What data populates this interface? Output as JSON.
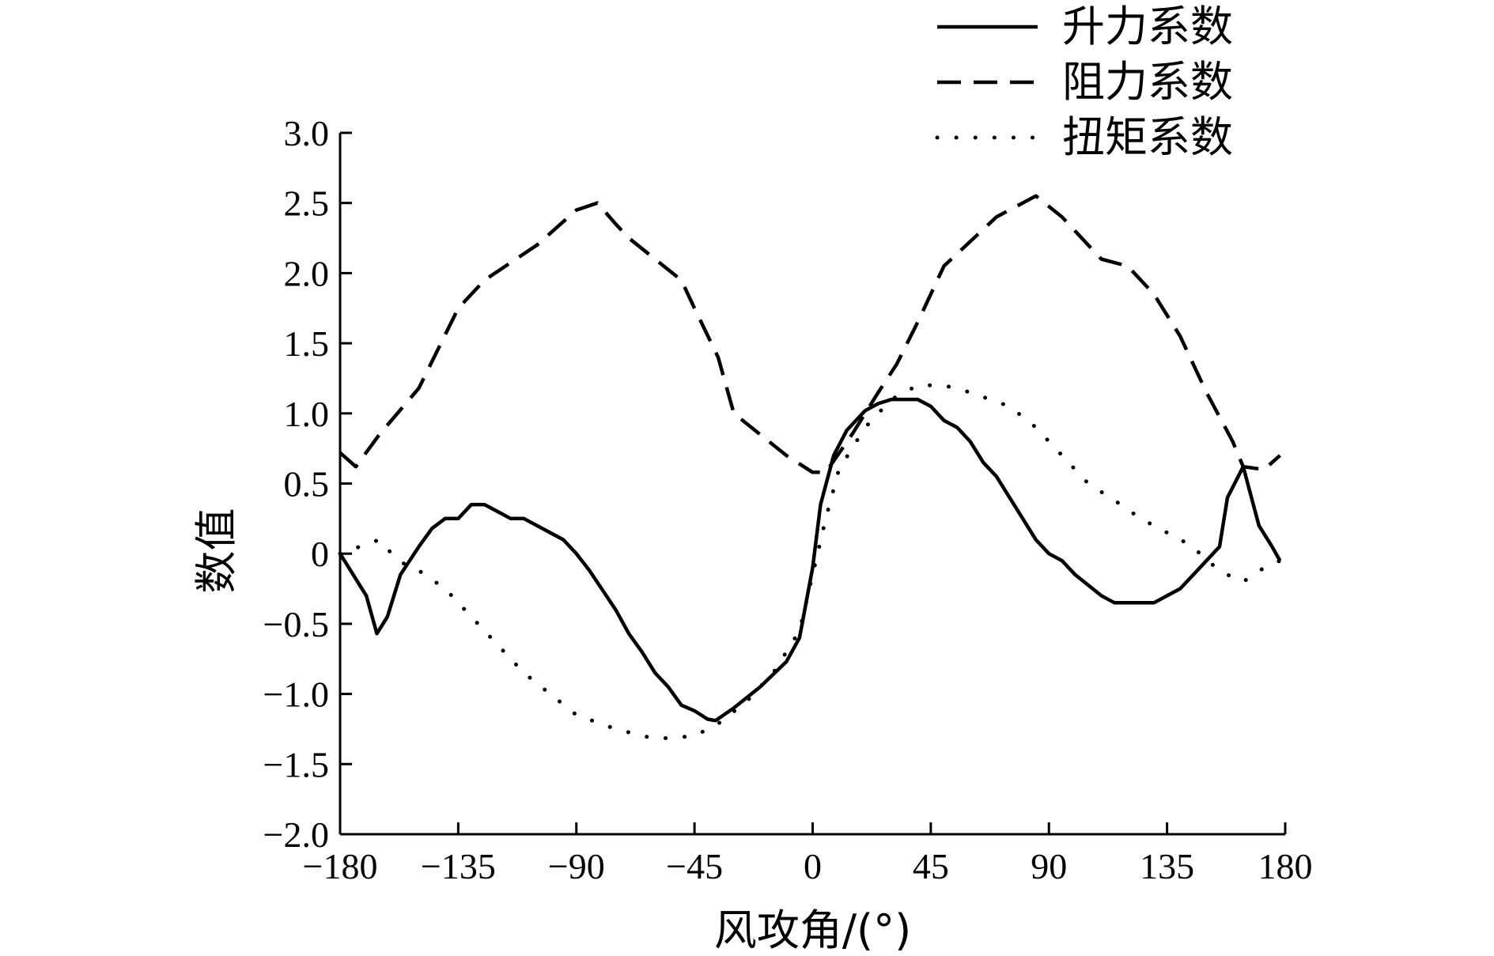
{
  "chart_data": {
    "type": "line",
    "title": "",
    "xlabel": "风攻角/(°)",
    "ylabel": "数值",
    "xlim": [
      -180,
      180
    ],
    "ylim": [
      -2.0,
      3.0
    ],
    "x_ticks": [
      -180,
      -135,
      -90,
      -45,
      0,
      45,
      90,
      135,
      180
    ],
    "x_tick_labels": [
      "−180",
      "−135",
      "−90",
      "−45",
      "0",
      "45",
      "90",
      "135",
      "180"
    ],
    "y_ticks": [
      3.0,
      2.5,
      2.0,
      1.5,
      1.0,
      0.5,
      0,
      -0.5,
      -1.0,
      -1.5,
      -2.0
    ],
    "y_tick_labels": [
      "3.0",
      "2.5",
      "2.0",
      "1.5",
      "1.0",
      "0.5",
      "0",
      "−0.5",
      "−1.0",
      "−1.5",
      "−2.0"
    ],
    "grid": false,
    "legend_position": "top-right",
    "series": [
      {
        "name": "升力系数",
        "style": "solid",
        "points": [
          [
            -180,
            0.0
          ],
          [
            -170,
            -0.3
          ],
          [
            -166,
            -0.57
          ],
          [
            -162,
            -0.45
          ],
          [
            -157,
            -0.15
          ],
          [
            -150,
            0.05
          ],
          [
            -145,
            0.18
          ],
          [
            -140,
            0.25
          ],
          [
            -135,
            0.25
          ],
          [
            -130,
            0.35
          ],
          [
            -125,
            0.35
          ],
          [
            -115,
            0.25
          ],
          [
            -110,
            0.25
          ],
          [
            -100,
            0.15
          ],
          [
            -95,
            0.1
          ],
          [
            -90,
            0.0
          ],
          [
            -85,
            -0.12
          ],
          [
            -75,
            -0.4
          ],
          [
            -70,
            -0.57
          ],
          [
            -65,
            -0.7
          ],
          [
            -60,
            -0.85
          ],
          [
            -55,
            -0.95
          ],
          [
            -50,
            -1.08
          ],
          [
            -45,
            -1.12
          ],
          [
            -40,
            -1.18
          ],
          [
            -37,
            -1.19
          ],
          [
            -30,
            -1.1
          ],
          [
            -20,
            -0.95
          ],
          [
            -10,
            -0.77
          ],
          [
            -5,
            -0.6
          ],
          [
            0,
            -0.1
          ],
          [
            3,
            0.35
          ],
          [
            8,
            0.7
          ],
          [
            13,
            0.88
          ],
          [
            20,
            1.02
          ],
          [
            25,
            1.07
          ],
          [
            30,
            1.1
          ],
          [
            40,
            1.1
          ],
          [
            45,
            1.05
          ],
          [
            50,
            0.95
          ],
          [
            55,
            0.9
          ],
          [
            60,
            0.8
          ],
          [
            65,
            0.65
          ],
          [
            70,
            0.55
          ],
          [
            80,
            0.25
          ],
          [
            85,
            0.1
          ],
          [
            90,
            0.0
          ],
          [
            95,
            -0.05
          ],
          [
            100,
            -0.15
          ],
          [
            110,
            -0.3
          ],
          [
            115,
            -0.35
          ],
          [
            130,
            -0.35
          ],
          [
            135,
            -0.3
          ],
          [
            140,
            -0.25
          ],
          [
            145,
            -0.15
          ],
          [
            150,
            -0.05
          ],
          [
            155,
            0.05
          ],
          [
            158,
            0.4
          ],
          [
            164,
            0.62
          ],
          [
            170,
            0.2
          ],
          [
            175,
            0.05
          ],
          [
            178,
            -0.05
          ]
        ]
      },
      {
        "name": "阻力系数",
        "style": "dashed",
        "points": [
          [
            -180,
            0.72
          ],
          [
            -174,
            0.62
          ],
          [
            -165,
            0.85
          ],
          [
            -150,
            1.18
          ],
          [
            -135,
            1.75
          ],
          [
            -125,
            1.95
          ],
          [
            -105,
            2.2
          ],
          [
            -90,
            2.45
          ],
          [
            -82,
            2.5
          ],
          [
            -75,
            2.35
          ],
          [
            -70,
            2.25
          ],
          [
            -60,
            2.1
          ],
          [
            -50,
            1.95
          ],
          [
            -45,
            1.75
          ],
          [
            -36,
            1.4
          ],
          [
            -30,
            1.0
          ],
          [
            -20,
            0.85
          ],
          [
            -10,
            0.7
          ],
          [
            0,
            0.58
          ],
          [
            5,
            0.58
          ],
          [
            15,
            0.85
          ],
          [
            25,
            1.15
          ],
          [
            32,
            1.35
          ],
          [
            40,
            1.65
          ],
          [
            50,
            2.05
          ],
          [
            70,
            2.4
          ],
          [
            85,
            2.55
          ],
          [
            95,
            2.4
          ],
          [
            100,
            2.3
          ],
          [
            110,
            2.1
          ],
          [
            120,
            2.05
          ],
          [
            130,
            1.85
          ],
          [
            140,
            1.55
          ],
          [
            150,
            1.15
          ],
          [
            160,
            0.8
          ],
          [
            164,
            0.62
          ],
          [
            172,
            0.6
          ],
          [
            178,
            0.7
          ]
        ]
      },
      {
        "name": "扭矩系数",
        "style": "dotted",
        "points": [
          [
            -180,
            0.0
          ],
          [
            -165,
            0.1
          ],
          [
            -158,
            -0.05
          ],
          [
            -150,
            -0.12
          ],
          [
            -140,
            -0.25
          ],
          [
            -130,
            -0.45
          ],
          [
            -120,
            -0.65
          ],
          [
            -110,
            -0.85
          ],
          [
            -100,
            -1.0
          ],
          [
            -90,
            -1.15
          ],
          [
            -75,
            -1.25
          ],
          [
            -60,
            -1.32
          ],
          [
            -45,
            -1.3
          ],
          [
            -35,
            -1.2
          ],
          [
            -25,
            -1.05
          ],
          [
            -15,
            -0.85
          ],
          [
            -5,
            -0.55
          ],
          [
            0,
            -0.15
          ],
          [
            5,
            0.25
          ],
          [
            10,
            0.6
          ],
          [
            20,
            0.9
          ],
          [
            30,
            1.1
          ],
          [
            40,
            1.2
          ],
          [
            50,
            1.2
          ],
          [
            60,
            1.15
          ],
          [
            75,
            1.05
          ],
          [
            85,
            0.9
          ],
          [
            95,
            0.7
          ],
          [
            105,
            0.5
          ],
          [
            115,
            0.38
          ],
          [
            125,
            0.25
          ],
          [
            135,
            0.15
          ],
          [
            145,
            0.05
          ],
          [
            150,
            -0.05
          ],
          [
            158,
            -0.15
          ],
          [
            164,
            -0.2
          ],
          [
            172,
            -0.1
          ],
          [
            178,
            -0.05
          ]
        ]
      }
    ]
  }
}
